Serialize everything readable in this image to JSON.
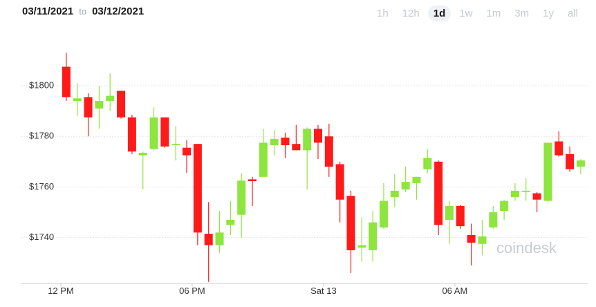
{
  "header": {
    "from": "03/11/2021",
    "to_word": "to",
    "to": "03/12/2021"
  },
  "ranges": [
    "1h",
    "12h",
    "1d",
    "1w",
    "1m",
    "3m",
    "1y",
    "all"
  ],
  "selected_range": 2,
  "watermark": "coindesk",
  "chart_data": {
    "type": "candlestick",
    "x": [
      0.25,
      0.75,
      1.25,
      1.75,
      2.25,
      2.75,
      3.25,
      3.75,
      4.25,
      4.75,
      5.25,
      5.75,
      6.25,
      6.75,
      7.25,
      7.75,
      8.25,
      8.75,
      9.25,
      9.75,
      10.25,
      10.75,
      11.25,
      11.75,
      12.25,
      12.75,
      13.25,
      13.75,
      14.25,
      14.75,
      15.25,
      15.75,
      16.25,
      16.75,
      17.25,
      17.75,
      18.25,
      18.75,
      19.25,
      19.75,
      20.25,
      20.75,
      21.25,
      21.75,
      22.25,
      22.75,
      23.25,
      23.75
    ],
    "open": [
      1807.5,
      1794,
      1795.5,
      1791,
      1794,
      1798,
      1787.5,
      1772.5,
      1775,
      1787.5,
      1776.5,
      1775.5,
      1777,
      1741.5,
      1737,
      1745,
      1749,
      1763,
      1764,
      1776.5,
      1779.5,
      1777,
      1774.5,
      1783,
      1780,
      1769,
      1756.5,
      1736,
      1735,
      1744,
      1756,
      1759,
      1761.5,
      1767,
      1770,
      1747,
      1752.5,
      1741,
      1737.5,
      1744,
      1750.5,
      1756,
      1758,
      1757.5,
      1754.5,
      1778,
      1773,
      1768
    ],
    "high": [
      1813,
      1801,
      1797,
      1800,
      1805,
      1798,
      1788.5,
      1774,
      1791.5,
      1787.5,
      1784,
      1778.5,
      1777,
      1754,
      1750.5,
      1754.5,
      1765.5,
      1764,
      1783,
      1782.5,
      1781.5,
      1784.5,
      1783.5,
      1784.5,
      1785,
      1770,
      1758.5,
      1748,
      1750.5,
      1761.5,
      1765,
      1768,
      1764,
      1775,
      1770.5,
      1754.5,
      1753,
      1745.5,
      1747,
      1752.5,
      1755,
      1761.5,
      1763.5,
      1758,
      1777.5,
      1782,
      1776,
      1771
    ],
    "low": [
      1794,
      1788,
      1780,
      1783,
      1790,
      1787,
      1773,
      1759,
      1774.5,
      1775.5,
      1770.5,
      1765.5,
      1737,
      1722.5,
      1734,
      1741,
      1740,
      1752.5,
      1764,
      1772.5,
      1771.5,
      1774.5,
      1759,
      1771,
      1764,
      1746,
      1726,
      1730.5,
      1730.5,
      1743.5,
      1752,
      1758,
      1755,
      1765.5,
      1741,
      1737.5,
      1743.5,
      1729,
      1733,
      1743.5,
      1747,
      1754.5,
      1754.5,
      1750,
      1754,
      1772,
      1766,
      1765
    ],
    "close": [
      1795.5,
      1795,
      1787.5,
      1794,
      1796,
      1787.5,
      1774,
      1773.5,
      1787.5,
      1776,
      1777,
      1772.5,
      1742,
      1737,
      1742,
      1747,
      1762.5,
      1762.3,
      1777.5,
      1779,
      1776.5,
      1774.5,
      1783,
      1777.5,
      1768,
      1755,
      1735,
      1737,
      1746,
      1754.5,
      1758.5,
      1762,
      1764,
      1771.5,
      1745,
      1752.5,
      1744.5,
      1738,
      1740.5,
      1750,
      1754.5,
      1758.5,
      1758.5,
      1755,
      1777.5,
      1772.5,
      1767,
      1770.5
    ],
    "up_color": "#8ee53f",
    "down_color": "#ff1a1a",
    "xlim": [
      -1.5,
      24.1
    ],
    "ylim": [
      1722,
      1820
    ],
    "xticks": [
      {
        "value": 0,
        "label": "12 PM"
      },
      {
        "value": 6,
        "label": "06 PM"
      },
      {
        "value": 12,
        "label": "Sat 13"
      },
      {
        "value": 18,
        "label": "06 AM"
      }
    ],
    "yticks": [
      {
        "value": 1740,
        "label": "$1740"
      },
      {
        "value": 1760,
        "label": "$1760"
      },
      {
        "value": 1780,
        "label": "$1780"
      },
      {
        "value": 1800,
        "label": "$1800"
      }
    ],
    "grid": true
  }
}
